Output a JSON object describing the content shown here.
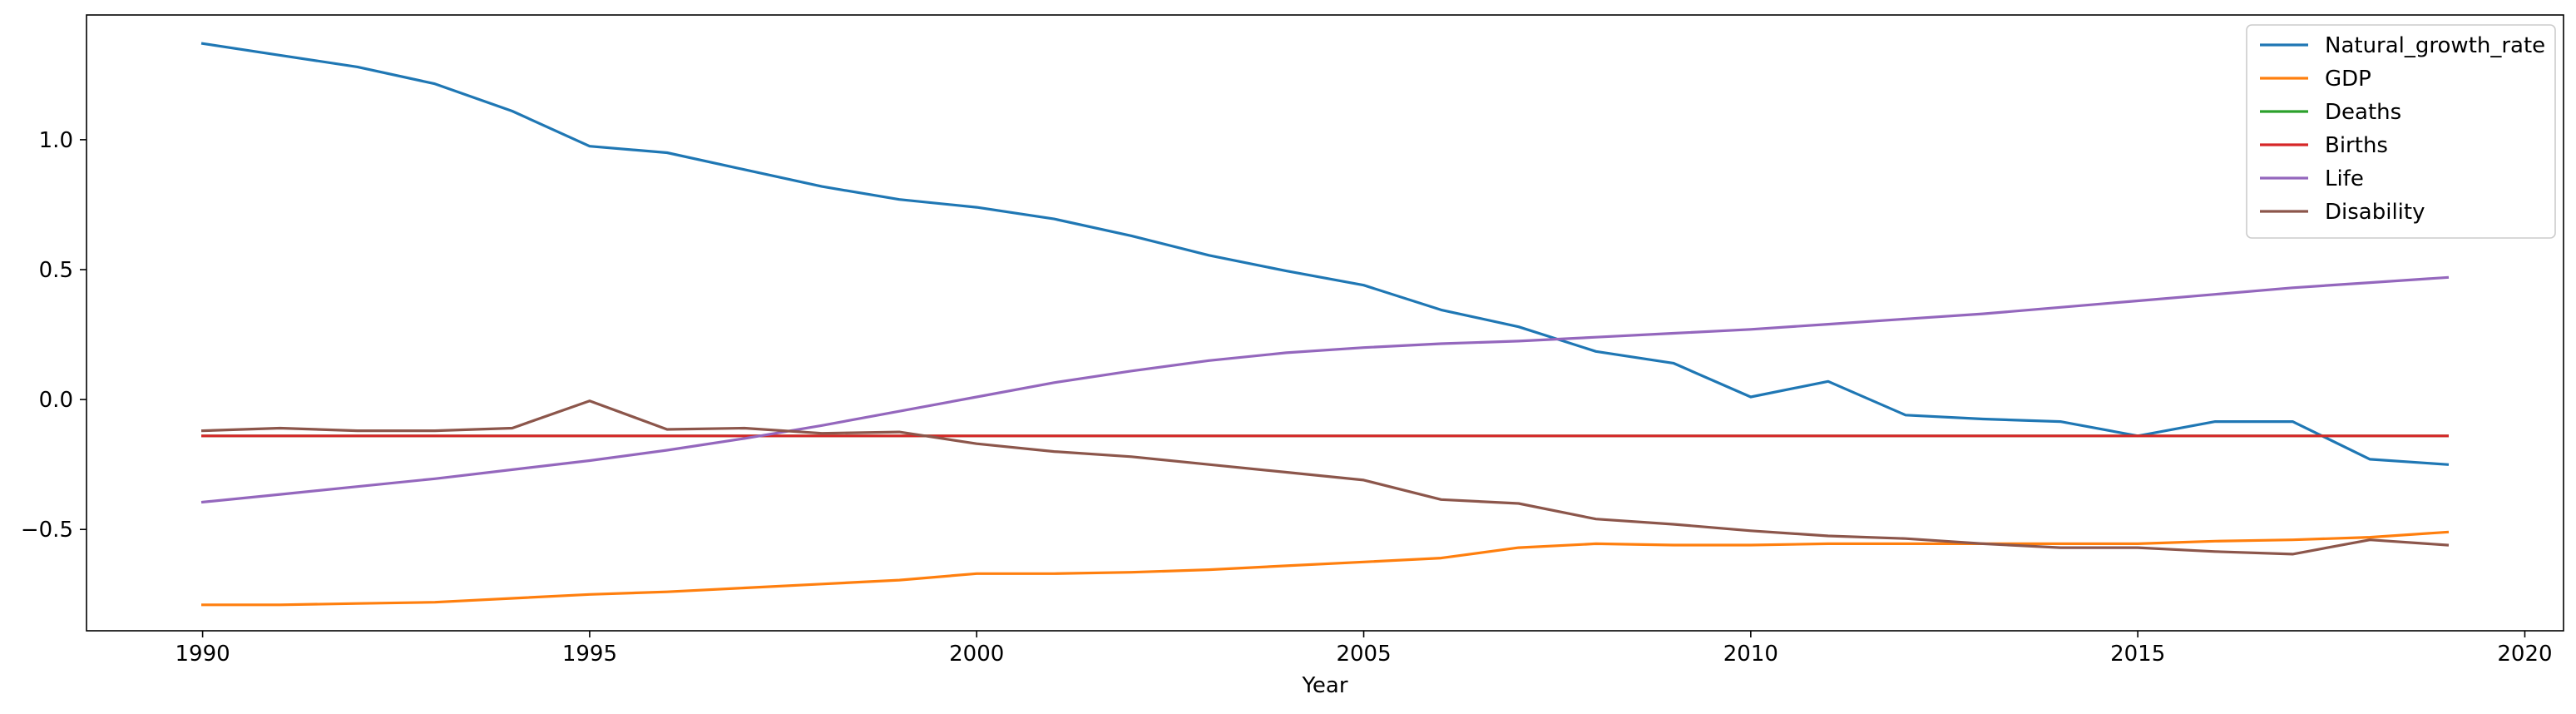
{
  "chart_data": {
    "type": "line",
    "xlabel": "Year",
    "ylabel": "",
    "title": "",
    "xlim": [
      1988.5,
      2020.5
    ],
    "ylim": [
      -0.89,
      1.48
    ],
    "xticks": [
      1990,
      1995,
      2000,
      2005,
      2010,
      2015,
      2020
    ],
    "yticks": [
      -0.5,
      0.0,
      0.5,
      1.0
    ],
    "grid": false,
    "legend_position": "top-right",
    "x": [
      1990,
      1991,
      1992,
      1993,
      1994,
      1995,
      1996,
      1997,
      1998,
      1999,
      2000,
      2001,
      2002,
      2003,
      2004,
      2005,
      2006,
      2007,
      2008,
      2009,
      2010,
      2011,
      2012,
      2013,
      2014,
      2015,
      2016,
      2017,
      2018,
      2019
    ],
    "series": [
      {
        "name": "Natural_growth_rate",
        "color": "#1f77b4",
        "values": [
          1.37,
          1.325,
          1.28,
          1.215,
          1.11,
          0.975,
          0.95,
          0.885,
          0.82,
          0.77,
          0.74,
          0.695,
          0.63,
          0.555,
          0.495,
          0.44,
          0.345,
          0.28,
          0.185,
          0.14,
          0.01,
          0.07,
          -0.06,
          -0.075,
          -0.085,
          -0.14,
          -0.085,
          -0.085,
          -0.23,
          -0.25
        ]
      },
      {
        "name": "GDP",
        "color": "#ff7f0e",
        "values": [
          -0.79,
          -0.79,
          -0.785,
          -0.78,
          -0.765,
          -0.75,
          -0.74,
          -0.725,
          -0.71,
          -0.695,
          -0.67,
          -0.67,
          -0.665,
          -0.655,
          -0.64,
          -0.625,
          -0.61,
          -0.57,
          -0.555,
          -0.56,
          -0.56,
          -0.555,
          -0.555,
          -0.555,
          -0.555,
          -0.555,
          -0.545,
          -0.54,
          -0.53,
          -0.51
        ]
      },
      {
        "name": "Deaths",
        "color": "#2ca02c",
        "values": [
          -0.14,
          -0.14,
          -0.14,
          -0.14,
          -0.14,
          -0.14,
          -0.14,
          -0.14,
          -0.14,
          -0.14,
          -0.14,
          -0.14,
          -0.14,
          -0.14,
          -0.14,
          -0.14,
          -0.14,
          -0.14,
          -0.14,
          -0.14,
          -0.14,
          -0.14,
          -0.14,
          -0.14,
          -0.14,
          -0.14,
          -0.14,
          -0.14,
          -0.14,
          -0.14
        ]
      },
      {
        "name": "Births",
        "color": "#d62728",
        "values": [
          -0.14,
          -0.14,
          -0.14,
          -0.14,
          -0.14,
          -0.14,
          -0.14,
          -0.14,
          -0.14,
          -0.14,
          -0.14,
          -0.14,
          -0.14,
          -0.14,
          -0.14,
          -0.14,
          -0.14,
          -0.14,
          -0.14,
          -0.14,
          -0.14,
          -0.14,
          -0.14,
          -0.14,
          -0.14,
          -0.14,
          -0.14,
          -0.14,
          -0.14,
          -0.14
        ]
      },
      {
        "name": "Life",
        "color": "#9467bd",
        "values": [
          -0.395,
          -0.365,
          -0.335,
          -0.305,
          -0.27,
          -0.235,
          -0.195,
          -0.15,
          -0.1,
          -0.045,
          0.01,
          0.065,
          0.11,
          0.15,
          0.18,
          0.2,
          0.215,
          0.225,
          0.24,
          0.255,
          0.27,
          0.29,
          0.31,
          0.33,
          0.355,
          0.38,
          0.405,
          0.43,
          0.45,
          0.47
        ]
      },
      {
        "name": "Disability",
        "color": "#8c564b",
        "values": [
          -0.12,
          -0.11,
          -0.12,
          -0.12,
          -0.11,
          -0.005,
          -0.115,
          -0.11,
          -0.13,
          -0.125,
          -0.17,
          -0.2,
          -0.22,
          -0.25,
          -0.28,
          -0.31,
          -0.385,
          -0.4,
          -0.46,
          -0.48,
          -0.505,
          -0.525,
          -0.535,
          -0.555,
          -0.57,
          -0.57,
          -0.585,
          -0.595,
          -0.54,
          -0.56
        ]
      }
    ]
  }
}
